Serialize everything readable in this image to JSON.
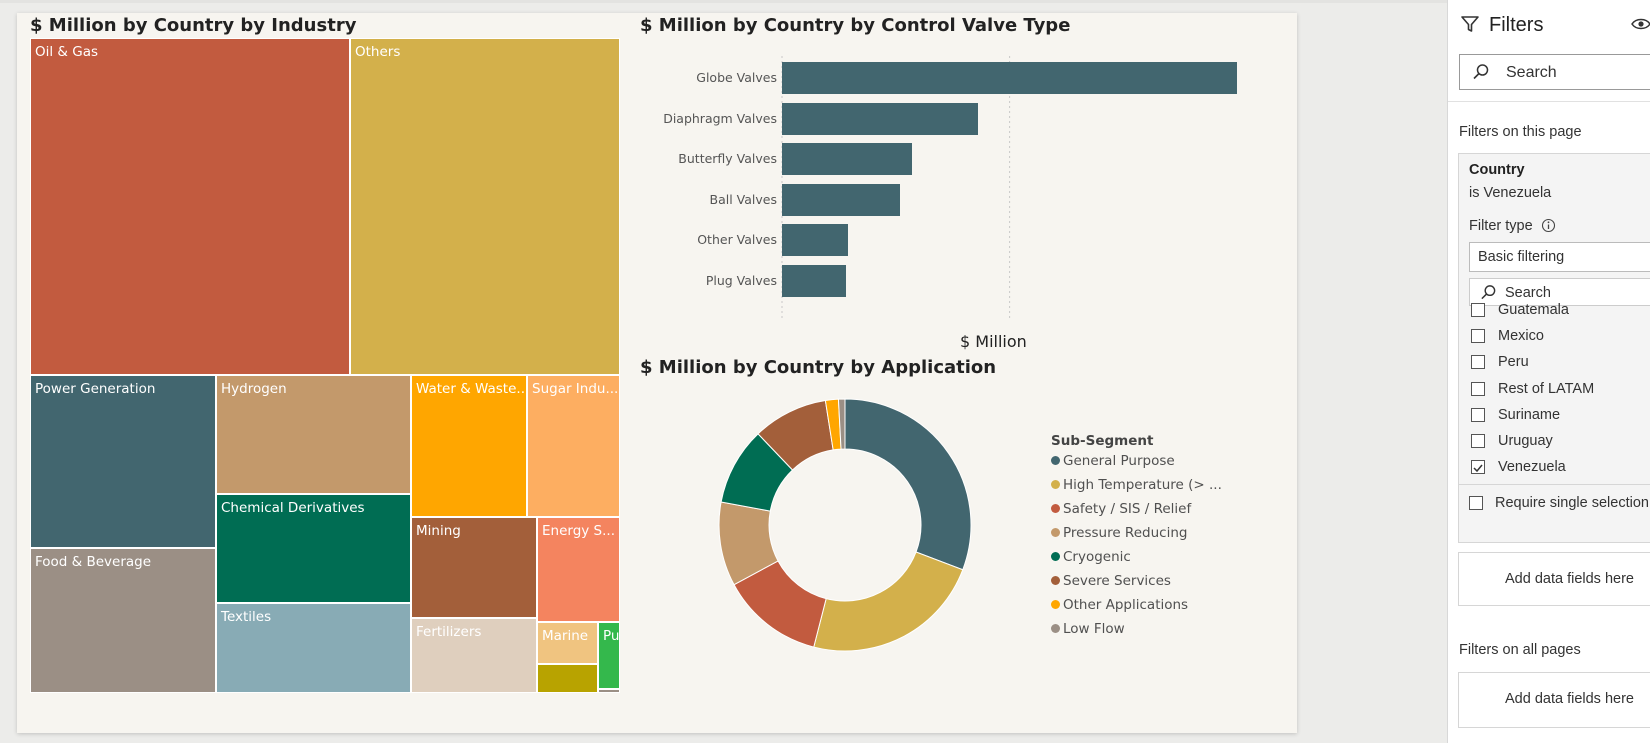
{
  "treemap": {
    "title": "$ Million by Country by Industry",
    "cells": [
      {
        "label": "Oil & Gas",
        "color": "#c25b3f"
      },
      {
        "label": "Others",
        "color": "#d3b04b"
      },
      {
        "label": "Power Generation",
        "color": "#42666f"
      },
      {
        "label": "Hydrogen",
        "color": "#c3996b"
      },
      {
        "label": "Water & Waste...",
        "color": "#ffa600"
      },
      {
        "label": "Sugar Indu...",
        "color": "#fdae61"
      },
      {
        "label": "Chemical Derivatives",
        "color": "#006d53"
      },
      {
        "label": "Mining",
        "color": "#a35f3a"
      },
      {
        "label": "Energy S...",
        "color": "#f4845f"
      },
      {
        "label": "Food & Beverage",
        "color": "#9b8f85"
      },
      {
        "label": "Textiles",
        "color": "#88abb5"
      },
      {
        "label": "Fertilizers",
        "color": "#dfcfbe"
      },
      {
        "label": "Marine",
        "color": "#f0c480"
      },
      {
        "label": "Pulp ...",
        "color": "#34b84c"
      },
      {
        "label": "",
        "color": "#b8a300"
      },
      {
        "label": "",
        "color": "#9b8f85"
      }
    ]
  },
  "bar_chart": {
    "title": "$ Million by Country by Control Valve Type",
    "axis_label": "$ Million",
    "bar_color": "#42666f"
  },
  "donut": {
    "title": "$ Million by Country by Application",
    "legend_title": "Sub-Segment"
  },
  "chart_data": [
    {
      "type": "bar",
      "orientation": "horizontal",
      "categories": [
        "Globe Valves",
        "Diaphragm Valves",
        "Butterfly Valves",
        "Ball Valves",
        "Other Valves",
        "Plug Valves"
      ],
      "values": [
        100,
        43,
        28.5,
        26,
        14.5,
        14
      ],
      "xlabel": "$ Million",
      "xlim": [
        0,
        105
      ],
      "grid": "vertical-dotted"
    },
    {
      "type": "pie",
      "variant": "donut",
      "legend_title": "Sub-Segment",
      "legend_position": "right",
      "categories": [
        "General Purpose",
        "High Temperature (> ...",
        "Safety / SIS / Relief",
        "Pressure Reducing",
        "Cryogenic",
        "Severe Services",
        "Other Applications",
        "Low Flow"
      ],
      "values": [
        29.7,
        22.4,
        12.7,
        10.4,
        9.6,
        9.3,
        1.6,
        0.8
      ],
      "colors": [
        "#42666f",
        "#d3b04b",
        "#c25b3f",
        "#c3996b",
        "#006d53",
        "#a35f3a",
        "#ffa600",
        "#9b8f85"
      ]
    }
  ],
  "filters": {
    "title": "Filters",
    "search_placeholder": "Search",
    "on_this_page": "Filters on this page",
    "card": {
      "field": "Country",
      "condition": "is Venezuela",
      "filter_type_label": "Filter type",
      "filter_type_value": "Basic filtering",
      "search_placeholder": "Search",
      "options": [
        {
          "label": "Guatemala",
          "checked": false
        },
        {
          "label": "Mexico",
          "checked": false
        },
        {
          "label": "Peru",
          "checked": false
        },
        {
          "label": "Rest of LATAM",
          "checked": false
        },
        {
          "label": "Suriname",
          "checked": false
        },
        {
          "label": "Uruguay",
          "checked": false
        },
        {
          "label": "Venezuela",
          "checked": true
        }
      ],
      "require_single": "Require single selection"
    },
    "add_data_fields": "Add data fields here",
    "on_all_pages": "Filters on all pages",
    "add_data_fields_all": "Add data fields here"
  }
}
